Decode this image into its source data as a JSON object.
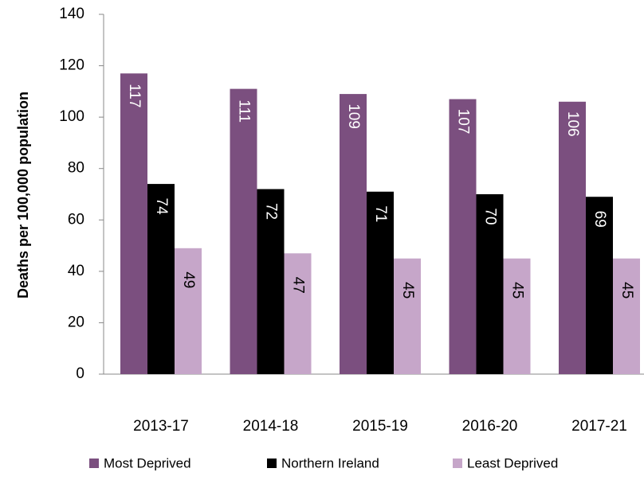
{
  "chart_data": {
    "type": "bar",
    "y_label": "Deaths per 100,000 population",
    "categories": [
      "2013-17",
      "2014-18",
      "2015-19",
      "2016-20",
      "2017-21"
    ],
    "series": [
      {
        "name": "Most Deprived",
        "color": "#7b4f7f",
        "values": [
          117,
          111,
          109,
          107,
          106
        ]
      },
      {
        "name": "Northern Ireland",
        "color": "#000000",
        "values": [
          74,
          72,
          71,
          70,
          69
        ]
      },
      {
        "name": "Least Deprived",
        "color": "#c6a6c9",
        "values": [
          49,
          47,
          45,
          45,
          45
        ]
      }
    ],
    "ylim": [
      0,
      140
    ],
    "yticks": [
      0,
      20,
      40,
      60,
      80,
      100,
      120,
      140
    ],
    "grid": false,
    "legend": "bottom"
  }
}
